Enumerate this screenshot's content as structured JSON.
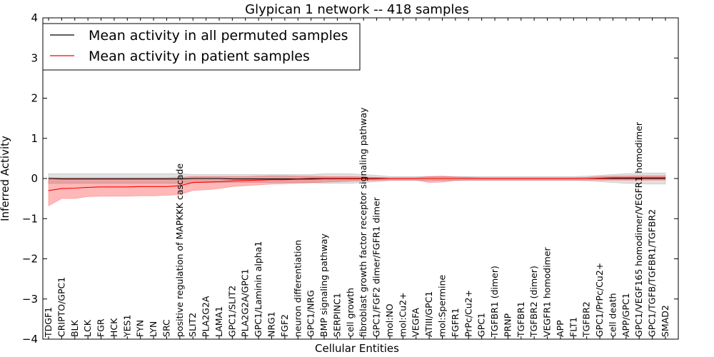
{
  "chart_data": {
    "type": "line",
    "title": "Glypican 1 network -- 418 samples",
    "xlabel": "Cellular Entities",
    "ylabel": "Inferred Activity",
    "ylim": [
      -4,
      4
    ],
    "yticks": [
      4,
      3,
      2,
      1,
      0,
      -1,
      -2,
      -3,
      -4
    ],
    "ytick_labels": [
      "4",
      "3",
      "2",
      "1",
      "0",
      "−1",
      "−2",
      "−3",
      "−4"
    ],
    "grid": false,
    "legend_position": "top-left",
    "categories": [
      "TDGF1",
      "CRIPTO/GPC1",
      "BLK",
      "LCK",
      "FGR",
      "HCK",
      "YES1",
      "FYN",
      "LYN",
      "SRC",
      "positive regulation of MAPKKK cascade",
      "SLIT2",
      "PLA2G2A",
      "LAMA1",
      "GPC1/SLIT2",
      "PLA2G2A/GPC1",
      "GPC1/Laminin alpha1",
      "NRG1",
      "FGF2",
      "neuron differentiation",
      "GPC1/NRG",
      "BMP signaling pathway",
      "SERPINC1",
      "cell growth",
      "fibroblast growth factor receptor signaling pathway",
      "GPC1/FGF2 dimer/FGFR1 dimer",
      "mol:NO",
      "mol:Cu2+",
      "VEGFA",
      "ATIII/GPC1",
      "mol:Spermine",
      "FGFR1",
      "PrPc/Cu2+",
      "GPC1",
      "TGFBR1 (dimer)",
      "PRNP",
      "TGFBR1",
      "TGFBR2 (dimer)",
      "VEGFR1 homodimer",
      "APP",
      "FLT1",
      "TGFBR2",
      "GPC1/PrPc/Cu2+",
      "cell death",
      "APP/GPC1",
      "GPC1/VEGF165 homodimer/VEGFR1 homodimer",
      "GPC1/TGFB/TGFBR1/TGFBR2",
      "SMAD2"
    ],
    "series": [
      {
        "name": "Mean activity in all permuted samples",
        "color": "#000000",
        "values": [
          0,
          -0.01,
          -0.01,
          -0.01,
          -0.01,
          -0.01,
          -0.01,
          -0.01,
          -0.01,
          -0.01,
          -0.01,
          0,
          0,
          0,
          -0.01,
          -0.01,
          -0.01,
          -0.01,
          -0.01,
          -0.01,
          0,
          0,
          0,
          0,
          0,
          0,
          0,
          0,
          0,
          0,
          0,
          0,
          0,
          0,
          0,
          0,
          0,
          0,
          0,
          0,
          0,
          0,
          0,
          0,
          0,
          0,
          0,
          0
        ],
        "band_upper": [
          0.12,
          0.12,
          0.12,
          0.12,
          0.12,
          0.12,
          0.12,
          0.12,
          0.12,
          0.12,
          0.12,
          0.1,
          0.1,
          0.1,
          0.1,
          0.1,
          0.1,
          0.1,
          0.1,
          0.1,
          0.1,
          0.12,
          0.12,
          0.12,
          0.1,
          0.08,
          0.05,
          0.05,
          0.05,
          0.05,
          0.05,
          0.05,
          0.05,
          0.05,
          0.05,
          0.05,
          0.05,
          0.05,
          0.05,
          0.05,
          0.05,
          0.06,
          0.08,
          0.1,
          0.12,
          0.13,
          0.14,
          0.14
        ],
        "band_lower": [
          -0.12,
          -0.12,
          -0.12,
          -0.12,
          -0.12,
          -0.12,
          -0.12,
          -0.12,
          -0.12,
          -0.12,
          -0.12,
          -0.1,
          -0.1,
          -0.1,
          -0.1,
          -0.1,
          -0.1,
          -0.1,
          -0.1,
          -0.1,
          -0.1,
          -0.12,
          -0.12,
          -0.12,
          -0.1,
          -0.08,
          -0.05,
          -0.05,
          -0.05,
          -0.05,
          -0.05,
          -0.05,
          -0.05,
          -0.05,
          -0.05,
          -0.05,
          -0.05,
          -0.05,
          -0.05,
          -0.05,
          -0.05,
          -0.06,
          -0.08,
          -0.1,
          -0.12,
          -0.13,
          -0.14,
          -0.14
        ]
      },
      {
        "name": "Mean activity in patient samples",
        "color": "#ff0000",
        "values": [
          -0.3,
          -0.25,
          -0.24,
          -0.22,
          -0.21,
          -0.21,
          -0.21,
          -0.2,
          -0.2,
          -0.2,
          -0.18,
          -0.1,
          -0.09,
          -0.08,
          -0.06,
          -0.05,
          -0.04,
          -0.03,
          -0.03,
          -0.02,
          -0.02,
          -0.01,
          -0.01,
          -0.01,
          -0.01,
          -0.01,
          0,
          0,
          0,
          0,
          0,
          0,
          0,
          0,
          0,
          0,
          0,
          0,
          0,
          0,
          0,
          0,
          0.01,
          0.02,
          0.02,
          0.02,
          0.02,
          0.02
        ],
        "band_upper": [
          0.02,
          0.02,
          0.02,
          0.02,
          0.02,
          0.02,
          0.02,
          0.02,
          0.02,
          0.02,
          0.03,
          0.05,
          0.05,
          0.05,
          0.05,
          0.05,
          0.06,
          0.07,
          0.07,
          0.06,
          0.06,
          0.05,
          0.05,
          0.05,
          0.04,
          0.03,
          0.02,
          0.02,
          0.02,
          0.05,
          0.06,
          0.04,
          0.03,
          0.02,
          0.02,
          0.02,
          0.02,
          0.02,
          0.02,
          0.02,
          0.02,
          0.03,
          0.05,
          0.06,
          0.06,
          0.07,
          0.07,
          0.07
        ],
        "band_lower": [
          -0.68,
          -0.5,
          -0.5,
          -0.45,
          -0.44,
          -0.44,
          -0.44,
          -0.43,
          -0.43,
          -0.42,
          -0.4,
          -0.3,
          -0.28,
          -0.25,
          -0.2,
          -0.18,
          -0.16,
          -0.14,
          -0.13,
          -0.12,
          -0.11,
          -0.09,
          -0.08,
          -0.07,
          -0.06,
          -0.05,
          -0.04,
          -0.04,
          -0.04,
          -0.1,
          -0.09,
          -0.05,
          -0.04,
          -0.04,
          -0.04,
          -0.04,
          -0.04,
          -0.04,
          -0.04,
          -0.04,
          -0.04,
          -0.04,
          -0.04,
          -0.04,
          -0.04,
          -0.04,
          -0.04,
          -0.04
        ]
      }
    ]
  }
}
